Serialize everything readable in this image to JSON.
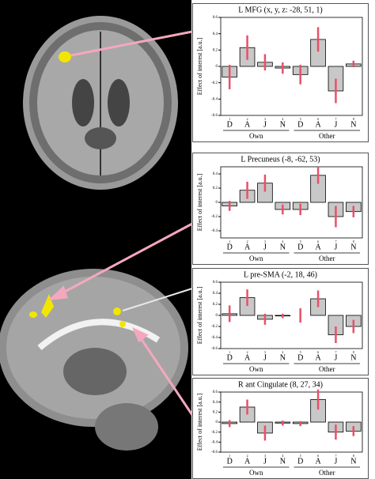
{
  "chart_data": [
    {
      "type": "bar",
      "title": "L MFG (x, y, z: -28, 51, 1)",
      "ylabel": "Effect of interest [a.u.]",
      "categories": [
        "D",
        "A",
        "J",
        "N",
        "D",
        "A",
        "J",
        "N"
      ],
      "category_numbers": [
        1,
        2,
        3,
        4,
        5,
        6,
        7,
        8
      ],
      "groups": [
        "Own",
        "Other"
      ],
      "values": [
        -0.13,
        0.23,
        0.05,
        -0.02,
        -0.1,
        0.33,
        -0.3,
        0.03
      ],
      "errors": [
        0.15,
        0.15,
        0.1,
        0.07,
        0.12,
        0.15,
        0.15,
        0.04
      ],
      "color": "#c8c8c8",
      "error_color": "#e8506a",
      "ylim": [
        -0.6,
        0.6
      ],
      "yticks": [
        -0.6,
        -0.4,
        -0.2,
        0,
        0.2,
        0.4,
        0.6
      ]
    },
    {
      "type": "bar",
      "title": "L Precuneus (-8, -62, 53)",
      "ylabel": "Effect of interest [a.u.]",
      "categories": [
        "D",
        "A",
        "J",
        "N",
        "D",
        "A",
        "J",
        "N"
      ],
      "category_numbers": [
        1,
        2,
        3,
        4,
        5,
        6,
        7,
        8
      ],
      "groups": [
        "Own",
        "Other"
      ],
      "values": [
        -0.05,
        0.17,
        0.27,
        -0.1,
        -0.1,
        0.38,
        -0.2,
        -0.13
      ],
      "errors": [
        0.07,
        0.12,
        0.12,
        0.07,
        0.08,
        0.12,
        0.15,
        0.08
      ],
      "color": "#c8c8c8",
      "error_color": "#e8506a",
      "ylim": [
        -0.5,
        0.5
      ],
      "yticks": [
        -0.4,
        -0.2,
        0,
        0.2,
        0.4
      ]
    },
    {
      "type": "bar",
      "title": "L pre-SMA (-2, 18, 46)",
      "ylabel": "Effect of interest [a.u.]",
      "categories": [
        "D",
        "A",
        "J",
        "N",
        "D",
        "A",
        "J",
        "N"
      ],
      "category_numbers": [
        1,
        2,
        3,
        4,
        5,
        6,
        7,
        8
      ],
      "groups": [
        "Own",
        "Other"
      ],
      "values": [
        0.03,
        0.32,
        -0.07,
        -0.01,
        0,
        0.3,
        -0.35,
        -0.2
      ],
      "errors": [
        0.15,
        0.15,
        0.1,
        0.04,
        0.13,
        0.15,
        0.15,
        0.12
      ],
      "color": "#c8c8c8",
      "error_color": "#e8506a",
      "ylim": [
        -0.6,
        0.6
      ],
      "yticks": [
        -0.6,
        -0.4,
        -0.2,
        0,
        0.2,
        0.4,
        0.6
      ]
    },
    {
      "type": "bar",
      "title": "R ant Cingulate (8, 27, 34)",
      "ylabel": "Effect of interest [a.u.]",
      "categories": [
        "D",
        "A",
        "J",
        "N",
        "D",
        "A",
        "J",
        "N"
      ],
      "category_numbers": [
        1,
        2,
        3,
        4,
        5,
        6,
        7,
        8
      ],
      "groups": [
        "Own",
        "Other"
      ],
      "values": [
        -0.03,
        0.3,
        -0.22,
        -0.02,
        -0.03,
        0.45,
        -0.2,
        -0.18
      ],
      "errors": [
        0.07,
        0.15,
        0.15,
        0.05,
        0.05,
        0.2,
        0.15,
        0.1
      ],
      "color": "#c8c8c8",
      "error_color": "#e8506a",
      "ylim": [
        -0.6,
        0.6
      ],
      "yticks": [
        -0.6,
        -0.4,
        -0.2,
        0,
        0.2,
        0.4,
        0.6
      ]
    }
  ]
}
